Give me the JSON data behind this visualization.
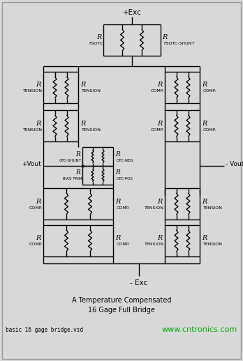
{
  "bg_color": "#d8d8d8",
  "inner_bg": "#ffffff",
  "line_color": "#000000",
  "title_line1": "A Temperature Compensated",
  "title_line2": "16 Gage Full Bridge",
  "footer_left": "basic 16 gage bridge.vsd",
  "footer_right": "www.cntronics.com",
  "footer_right_color": "#00aa00",
  "label_plus_exc": "+Exc",
  "label_minus_exc": "- Exc",
  "label_plus_vout": "+Vout",
  "label_minus_vout": "- Vout"
}
